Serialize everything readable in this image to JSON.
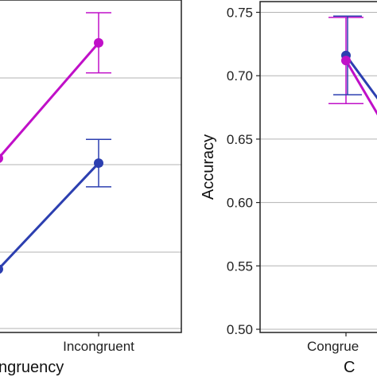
{
  "chart_data": [
    {
      "type": "line",
      "title": "",
      "xlabel": "ngruency",
      "ylabel": "",
      "categories": [
        "",
        "Incongruent"
      ],
      "yticks_visible": 4,
      "series": [
        {
          "color": "#c010c8",
          "points": [
            {
              "x": "",
              "y": 0.66,
              "err": null
            },
            {
              "x": "Incongruent",
              "y": 0.733,
              "err": 0.019
            }
          ]
        },
        {
          "color": "#2c3fb0",
          "points": [
            {
              "x": "",
              "y": 0.59,
              "err": null
            },
            {
              "x": "Incongruent",
              "y": 0.657,
              "err": 0.015
            }
          ]
        }
      ],
      "ylim": [
        0.55,
        0.76
      ],
      "grid": true,
      "legend": "none",
      "note": "left panel is cropped; y tick labels not visible"
    },
    {
      "type": "line",
      "title": "",
      "xlabel": "C",
      "ylabel": "Accuracy",
      "categories": [
        "Congrue",
        ""
      ],
      "yticks": [
        0.5,
        0.55,
        0.6,
        0.65,
        0.7,
        0.75
      ],
      "ytick_labels": [
        "0.50",
        "0.55",
        "0.60",
        "0.65",
        "0.70",
        "0.75"
      ],
      "series": [
        {
          "color": "#c010c8",
          "points": [
            {
              "x": "Congrue",
              "y": 0.712,
              "err": 0.034
            }
          ]
        },
        {
          "color": "#2c3fb0",
          "points": [
            {
              "x": "Congrue",
              "y": 0.716,
              "err": 0.031
            }
          ]
        }
      ],
      "ylim": [
        0.5,
        0.755
      ],
      "grid": true,
      "legend": "none"
    }
  ],
  "colors": {
    "magenta": "#c010c8",
    "blue": "#2c3fb0",
    "grid": "#b3b3b3",
    "axis": "#222222"
  }
}
